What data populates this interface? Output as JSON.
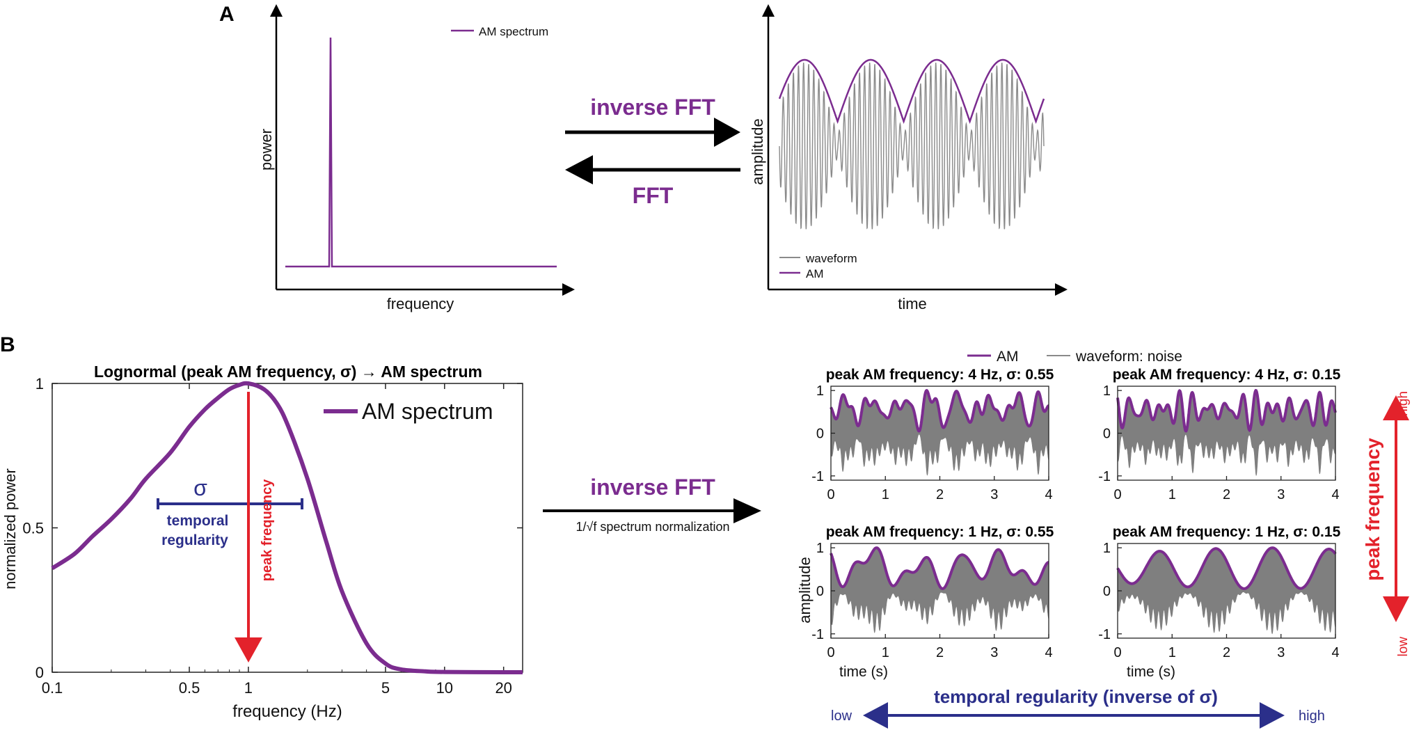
{
  "panelA": {
    "label": "A",
    "spectrum": {
      "ylabel": "power",
      "xlabel": "frequency",
      "legend": "AM spectrum"
    },
    "arrows": {
      "forward": "inverse FFT",
      "backward": "FFT"
    },
    "waveform": {
      "ylabel": "amplitude",
      "xlabel": "time",
      "legend": [
        "waveform",
        "AM"
      ]
    }
  },
  "panelB": {
    "label": "B",
    "chart": {
      "title": "Lognormal (peak AM frequency, σ) → AM spectrum",
      "ylabel": "normalized power",
      "xlabel": "frequency (Hz)",
      "legend": "AM spectrum",
      "sigma": "σ",
      "temporal_line1": "temporal",
      "temporal_line2": "regularity",
      "peak_label": "peak frequency"
    },
    "arrow": {
      "label": "inverse FFT",
      "sublabel": "1/√f spectrum normalization"
    },
    "legend": {
      "am": "AM",
      "waveform": "waveform: noise"
    },
    "subplots": [
      {
        "title": "peak AM frequency: 4 Hz, σ: 0.55"
      },
      {
        "title": "peak AM frequency: 4 Hz, σ: 0.15"
      },
      {
        "title": "peak AM frequency: 1 Hz, σ: 0.55"
      },
      {
        "title": "peak AM frequency: 1 Hz, σ: 0.15"
      }
    ],
    "sub_ylabel": "amplitude",
    "sub_xlabel": "time (s)",
    "right_axis": {
      "label": "peak frequency",
      "high": "high",
      "low": "low"
    },
    "bottom_axis": {
      "label": "temporal regularity (inverse of σ)",
      "low": "low",
      "high": "high"
    }
  },
  "colors": {
    "purple": "#7b2c8f",
    "gray": "#808080",
    "navy": "#2b2f8a",
    "red": "#e3222b"
  },
  "chart_data": [
    {
      "type": "line",
      "title": "Lognormal (peak AM frequency, σ) → AM spectrum",
      "xlabel": "frequency (Hz)",
      "ylabel": "normalized power",
      "xscale": "log",
      "xlim": [
        0.1,
        25
      ],
      "ylim": [
        0,
        1
      ],
      "xticks": [
        0.1,
        0.5,
        1,
        5,
        10,
        20
      ],
      "yticks": [
        0,
        0.5,
        1
      ],
      "series": [
        {
          "name": "AM spectrum",
          "x": [
            0.1,
            0.13,
            0.16,
            0.2,
            0.25,
            0.3,
            0.4,
            0.5,
            0.6,
            0.7,
            0.8,
            0.9,
            1.0,
            1.2,
            1.4,
            1.6,
            2.0,
            2.5,
            3.0,
            4.0,
            5.0,
            6.0,
            8.0,
            10,
            20,
            25
          ],
          "y": [
            0.36,
            0.41,
            0.47,
            0.53,
            0.6,
            0.67,
            0.76,
            0.85,
            0.91,
            0.95,
            0.98,
            0.995,
            1.0,
            0.98,
            0.93,
            0.85,
            0.67,
            0.45,
            0.28,
            0.1,
            0.03,
            0.01,
            0.003,
            0.001,
            0.0,
            0.0
          ]
        }
      ],
      "legend_position": "top-right"
    },
    {
      "type": "line",
      "xlim": [
        0,
        4
      ],
      "ylim": [
        -1.1,
        1.1
      ],
      "xticks": [
        0,
        1,
        2,
        3,
        4
      ],
      "yticks": [
        -1,
        0,
        1
      ],
      "panels": [
        {
          "peak_hz": 4,
          "sigma": 0.55
        },
        {
          "peak_hz": 4,
          "sigma": 0.15
        },
        {
          "peak_hz": 1,
          "sigma": 0.55
        },
        {
          "peak_hz": 1,
          "sigma": 0.15
        }
      ]
    }
  ]
}
